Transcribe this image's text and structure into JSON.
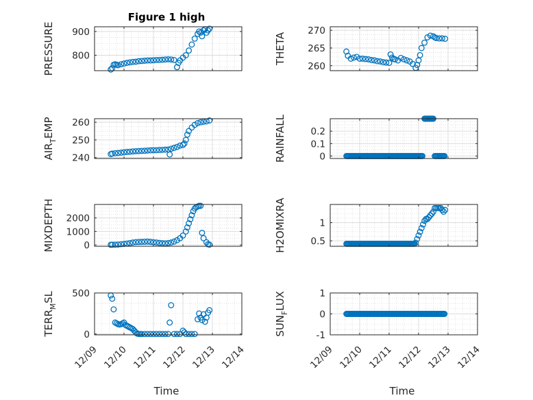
{
  "figure_title": "Figure 1 high",
  "colors": {
    "series": "#0072BD",
    "axis": "#262626",
    "grid": "#d9d9d9"
  },
  "chart_data": [
    {
      "type": "scatter",
      "ylabel": "PRESSURE",
      "ylabel_parts": [
        "PRESSURE"
      ],
      "xlim": [
        0,
        5
      ],
      "ylim": [
        735,
        920
      ],
      "yticks": [
        800,
        900
      ],
      "ytick_labels": [
        "800",
        "900"
      ],
      "x": [
        0.55,
        0.6,
        0.65,
        0.7,
        0.75,
        0.8,
        0.9,
        1.0,
        1.1,
        1.2,
        1.3,
        1.4,
        1.5,
        1.6,
        1.7,
        1.8,
        1.9,
        2.0,
        2.1,
        2.2,
        2.3,
        2.4,
        2.5,
        2.6,
        2.7,
        2.8,
        2.85,
        2.9,
        3.0,
        3.1,
        3.2,
        3.3,
        3.4,
        3.5,
        3.55,
        3.6,
        3.65,
        3.7,
        3.75,
        3.8,
        3.85,
        3.9
      ],
      "y": [
        740,
        745,
        760,
        762,
        760,
        758,
        762,
        765,
        768,
        770,
        772,
        773,
        775,
        776,
        777,
        778,
        778,
        779,
        780,
        780,
        781,
        782,
        783,
        782,
        780,
        750,
        768,
        778,
        790,
        800,
        820,
        845,
        870,
        890,
        900,
        895,
        880,
        905,
        910,
        895,
        905,
        912
      ]
    },
    {
      "type": "scatter",
      "ylabel": "THETA",
      "ylabel_parts": [
        "THETA"
      ],
      "xlim": [
        0,
        5
      ],
      "ylim": [
        258.6,
        271
      ],
      "yticks": [
        260,
        265,
        270
      ],
      "ytick_labels": [
        "260",
        "265",
        "270"
      ],
      "x": [
        0.55,
        0.6,
        0.7,
        0.8,
        0.9,
        1.0,
        1.1,
        1.2,
        1.3,
        1.4,
        1.5,
        1.6,
        1.7,
        1.8,
        1.9,
        2.0,
        2.05,
        2.1,
        2.15,
        2.2,
        2.3,
        2.4,
        2.5,
        2.6,
        2.7,
        2.8,
        2.9,
        2.95,
        3.0,
        3.05,
        3.1,
        3.2,
        3.3,
        3.4,
        3.5,
        3.55,
        3.6,
        3.7,
        3.8,
        3.9
      ],
      "y": [
        264,
        262.8,
        262,
        262.3,
        262.5,
        262,
        262,
        261.9,
        261.8,
        261.6,
        261.5,
        261.3,
        261.2,
        261,
        260.9,
        260.8,
        263.2,
        262.3,
        261.9,
        261.8,
        261.5,
        262.2,
        261.8,
        261.5,
        261.2,
        260.5,
        259.4,
        260.2,
        261.5,
        263,
        265,
        266.5,
        268,
        268.5,
        268.3,
        268,
        267.8,
        267.7,
        267.7,
        267.6
      ]
    },
    {
      "type": "scatter",
      "ylabel": "AIR_TEMP",
      "ylabel_parts": [
        "AIR",
        "T",
        "EMP"
      ],
      "xlim": [
        0,
        5
      ],
      "ylim": [
        239.5,
        262
      ],
      "yticks": [
        240,
        250,
        260
      ],
      "ytick_labels": [
        "240",
        "250",
        "260"
      ],
      "x": [
        0.55,
        0.6,
        0.7,
        0.8,
        0.9,
        1.0,
        1.1,
        1.2,
        1.3,
        1.4,
        1.5,
        1.6,
        1.7,
        1.8,
        1.9,
        2.0,
        2.1,
        2.2,
        2.3,
        2.4,
        2.5,
        2.55,
        2.6,
        2.7,
        2.8,
        2.9,
        3.0,
        3.05,
        3.1,
        3.15,
        3.2,
        3.3,
        3.4,
        3.5,
        3.6,
        3.7,
        3.8,
        3.9
      ],
      "y": [
        242,
        242.3,
        242.5,
        242.6,
        242.8,
        243,
        243.2,
        243.3,
        243.5,
        243.6,
        243.7,
        243.8,
        243.9,
        244,
        244.1,
        244.2,
        244.2,
        244.3,
        244.4,
        244.5,
        244.6,
        241.8,
        245,
        245.5,
        246,
        246.8,
        247.2,
        248,
        250,
        253,
        255,
        257,
        258.5,
        259.5,
        260,
        260.3,
        260.5,
        261
      ]
    },
    {
      "type": "scatter",
      "ylabel": "RAINFALL",
      "ylabel_parts": [
        "RAINFALL"
      ],
      "xlim": [
        0,
        5
      ],
      "ylim": [
        -0.02,
        0.3
      ],
      "yticks": [
        0,
        0.1,
        0.2
      ],
      "ytick_labels": [
        "0",
        "0.1",
        "0.2"
      ],
      "segments": [
        {
          "x_from": 0.55,
          "x_to": 3.15,
          "y": 0
        },
        {
          "x_from": 3.2,
          "x_to": 3.5,
          "y": 0.3
        },
        {
          "x_from": 3.55,
          "x_to": 3.9,
          "y": 0
        }
      ]
    },
    {
      "type": "scatter",
      "ylabel": "MIXDEPTH",
      "ylabel_parts": [
        "MIXDEPTH"
      ],
      "xlim": [
        0,
        5
      ],
      "ylim": [
        -100,
        3000
      ],
      "yticks": [
        0,
        1000,
        2000
      ],
      "ytick_labels": [
        "0",
        "1000",
        "2000"
      ],
      "x": [
        0.55,
        0.6,
        0.7,
        0.8,
        0.9,
        1.0,
        1.1,
        1.2,
        1.3,
        1.4,
        1.5,
        1.6,
        1.7,
        1.8,
        1.9,
        2.0,
        2.1,
        2.2,
        2.3,
        2.4,
        2.5,
        2.6,
        2.7,
        2.8,
        2.9,
        3.0,
        3.1,
        3.15,
        3.2,
        3.25,
        3.3,
        3.35,
        3.4,
        3.45,
        3.5,
        3.55,
        3.6,
        3.65,
        3.7,
        3.8,
        3.85,
        3.9
      ],
      "y": [
        10,
        15,
        20,
        30,
        60,
        80,
        110,
        140,
        180,
        210,
        220,
        230,
        240,
        250,
        230,
        200,
        180,
        150,
        130,
        120,
        140,
        180,
        250,
        350,
        500,
        700,
        1000,
        1300,
        1600,
        1900,
        2200,
        2500,
        2700,
        2800,
        2850,
        2900,
        2900,
        900,
        500,
        200,
        50,
        20
      ]
    },
    {
      "type": "scatter",
      "ylabel": "H2OMIXRA",
      "ylabel_parts": [
        "H2OMIXRA"
      ],
      "xlim": [
        0,
        5
      ],
      "ylim": [
        0.35,
        1.5
      ],
      "yticks": [
        0.5,
        1
      ],
      "ytick_labels": [
        "0.5",
        "1"
      ],
      "x_flat": {
        "x_from": 0.55,
        "x_to": 2.88,
        "y": 0.42
      },
      "x": [
        2.9,
        2.95,
        3.0,
        3.05,
        3.1,
        3.15,
        3.2,
        3.25,
        3.3,
        3.35,
        3.4,
        3.45,
        3.5,
        3.55,
        3.6,
        3.65,
        3.7,
        3.75,
        3.8,
        3.85,
        3.9
      ],
      "y": [
        0.45,
        0.55,
        0.65,
        0.75,
        0.85,
        0.95,
        1.05,
        1.1,
        1.1,
        1.15,
        1.2,
        1.25,
        1.3,
        1.4,
        1.4,
        1.4,
        1.4,
        1.4,
        1.35,
        1.3,
        1.35
      ]
    },
    {
      "type": "scatter",
      "ylabel": "TERR_MSL",
      "ylabel_parts": [
        "TERR",
        "M",
        "SL"
      ],
      "xlim": [
        0,
        5
      ],
      "ylim": [
        -10,
        500
      ],
      "yticks": [
        0,
        500
      ],
      "ytick_labels": [
        "0",
        "500"
      ],
      "x": [
        0.55,
        0.6,
        0.65,
        0.7,
        0.75,
        0.8,
        0.85,
        0.9,
        0.95,
        1.0,
        1.05,
        1.1,
        1.15,
        1.2,
        1.25,
        1.3,
        1.35,
        1.4,
        1.45,
        1.5,
        1.55,
        1.6,
        1.7,
        1.8,
        1.9,
        2.0,
        2.1,
        2.2,
        2.3,
        2.4,
        2.5,
        2.55,
        2.6,
        2.7,
        2.8,
        2.9,
        3.0,
        3.05,
        3.1,
        3.2,
        3.3,
        3.4,
        3.5,
        3.55,
        3.6,
        3.65,
        3.7,
        3.75,
        3.8,
        3.85,
        3.9
      ],
      "y": [
        470,
        430,
        300,
        140,
        130,
        120,
        115,
        120,
        130,
        140,
        110,
        100,
        90,
        80,
        70,
        60,
        40,
        20,
        5,
        0,
        0,
        0,
        0,
        0,
        0,
        0,
        0,
        0,
        0,
        0,
        0,
        140,
        350,
        0,
        0,
        0,
        40,
        20,
        0,
        0,
        0,
        0,
        180,
        250,
        200,
        170,
        240,
        150,
        200,
        260,
        290
      ]
    },
    {
      "type": "scatter",
      "ylabel": "SUN_FLUX",
      "ylabel_parts": [
        "SUN",
        "F",
        "LUX"
      ],
      "xlim": [
        0,
        5
      ],
      "ylim": [
        -1,
        1
      ],
      "yticks": [
        -1,
        0,
        1
      ],
      "ytick_labels": [
        "-1",
        "0",
        "1"
      ],
      "segments": [
        {
          "x_from": 0.55,
          "x_to": 3.9,
          "y": 0
        }
      ]
    }
  ],
  "xtick_labels": [
    "12/09",
    "12/10",
    "12/11",
    "12/12",
    "12/13",
    "12/14"
  ],
  "xlabel": "Time"
}
